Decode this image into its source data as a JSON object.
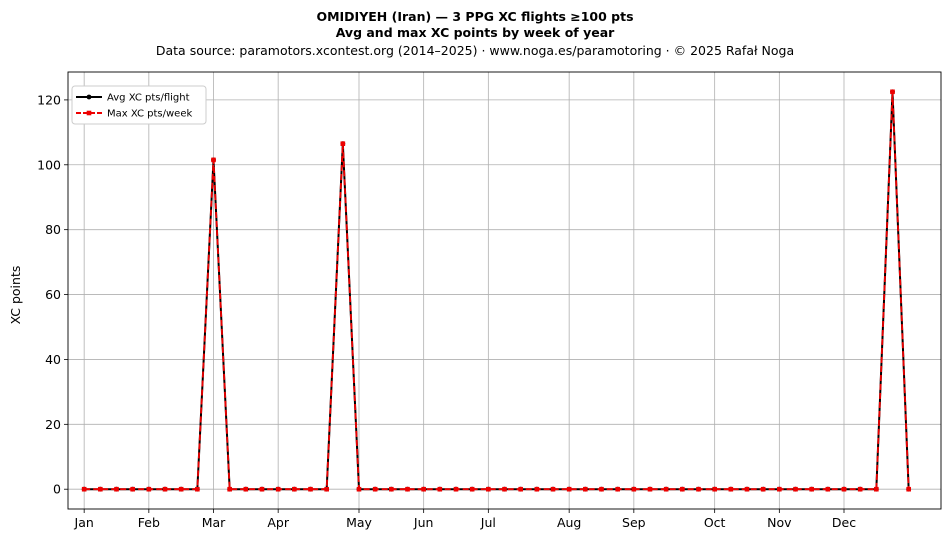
{
  "chart_data": {
    "type": "line",
    "title_line1": "OMIDIYEH (Iran)  —  3 PPG XC flights ≥100 pts",
    "title_line2": "Avg and max XC points by week of year",
    "subtitle": "Data source: paramotors.xcontest.org (2014–2025)  ·  www.noga.es/paramotoring  ·  © 2025 Rafał Noga",
    "ylabel": "XC points",
    "xlabel": "",
    "xlim": [
      0,
      54
    ],
    "ylim": [
      -6.1,
      128.6
    ],
    "yticks": [
      0,
      20,
      40,
      60,
      80,
      100,
      120
    ],
    "month_ticks": [
      {
        "label": "Jan",
        "week": 1
      },
      {
        "label": "Feb",
        "week": 5
      },
      {
        "label": "Mar",
        "week": 9
      },
      {
        "label": "Apr",
        "week": 13
      },
      {
        "label": "May",
        "week": 18
      },
      {
        "label": "Jun",
        "week": 22
      },
      {
        "label": "Jul",
        "week": 26
      },
      {
        "label": "Aug",
        "week": 31
      },
      {
        "label": "Sep",
        "week": 35
      },
      {
        "label": "Oct",
        "week": 40
      },
      {
        "label": "Nov",
        "week": 44
      },
      {
        "label": "Dec",
        "week": 48
      }
    ],
    "grid": true,
    "legend_position": "top-left",
    "x": [
      1,
      2,
      3,
      4,
      5,
      6,
      7,
      8,
      9,
      10,
      11,
      12,
      13,
      14,
      15,
      16,
      17,
      18,
      19,
      20,
      21,
      22,
      23,
      24,
      25,
      26,
      27,
      28,
      29,
      30,
      31,
      32,
      33,
      34,
      35,
      36,
      37,
      38,
      39,
      40,
      41,
      42,
      43,
      44,
      45,
      46,
      47,
      48,
      49,
      50,
      51,
      52
    ],
    "series": [
      {
        "name": "Avg XC pts/flight",
        "color": "#000000",
        "style": "solid-circle",
        "values": [
          0,
          0,
          0,
          0,
          0,
          0,
          0,
          0,
          101.5,
          0,
          0,
          0,
          0,
          0,
          0,
          0,
          106.5,
          0,
          0,
          0,
          0,
          0,
          0,
          0,
          0,
          0,
          0,
          0,
          0,
          0,
          0,
          0,
          0,
          0,
          0,
          0,
          0,
          0,
          0,
          0,
          0,
          0,
          0,
          0,
          0,
          0,
          0,
          0,
          0,
          0,
          122.5,
          0
        ]
      },
      {
        "name": "Max XC pts/week",
        "color": "#ee0000",
        "style": "dashed-square",
        "values": [
          0,
          0,
          0,
          0,
          0,
          0,
          0,
          0,
          101.5,
          0,
          0,
          0,
          0,
          0,
          0,
          0,
          106.5,
          0,
          0,
          0,
          0,
          0,
          0,
          0,
          0,
          0,
          0,
          0,
          0,
          0,
          0,
          0,
          0,
          0,
          0,
          0,
          0,
          0,
          0,
          0,
          0,
          0,
          0,
          0,
          0,
          0,
          0,
          0,
          0,
          0,
          122.5,
          0
        ]
      }
    ]
  }
}
